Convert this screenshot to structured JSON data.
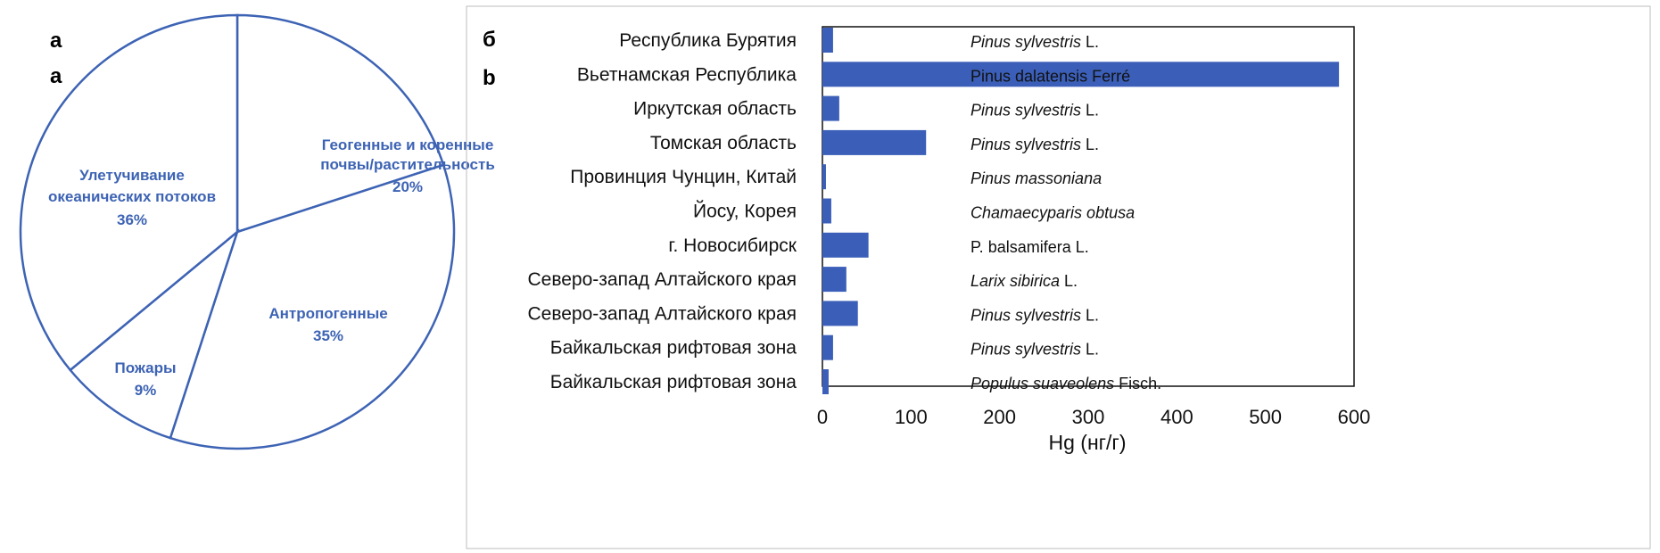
{
  "panels": {
    "pie_letters": [
      "а",
      "a"
    ],
    "bar_letters": [
      "б",
      "b"
    ]
  },
  "colors": {
    "pie_stroke": "#3d63b4",
    "pie_text": "#3d63b4",
    "bar_fill": "#3b5fb8",
    "axis": "#111111"
  },
  "chart_data": [
    {
      "type": "pie",
      "slices": [
        {
          "label": "Геогенные и коренные почвы/растительность",
          "lines": [
            "Геогенные и коренные",
            "почвы/растительность"
          ],
          "pct_label": "20%",
          "value": 20
        },
        {
          "label": "Антропогенные",
          "lines": [
            "Антропогенные"
          ],
          "pct_label": "35%",
          "value": 35
        },
        {
          "label": "Пожары",
          "lines": [
            "Пожары"
          ],
          "pct_label": "9%",
          "value": 9
        },
        {
          "label": "Улетучивание океанических потоков",
          "lines": [
            "Улетучивание",
            "океанических потоков"
          ],
          "pct_label": "36%",
          "value": 36
        }
      ],
      "start_angle_deg": 0,
      "direction": "clockwise"
    },
    {
      "type": "bar",
      "orientation": "horizontal",
      "categories": [
        "Республика Бурятия",
        "Вьетнамская Республика",
        "Иркутская область",
        "Томская область",
        "Провинция Чунцин, Китай",
        "Йосу, Корея",
        "г. Новосибирск",
        "Северо-запад Алтайского края",
        "Северо-запад Алтайского края",
        "Байкальская рифтовая зона",
        "Байкальская рифтовая зона"
      ],
      "species": [
        {
          "italic": "Pinus sylvestris",
          "rest": " L."
        },
        {
          "italic": "",
          "rest": "Pinus dalatensis Ferré"
        },
        {
          "italic": "Pinus sylvestris",
          "rest": " L."
        },
        {
          "italic": "Pinus sylvestris",
          "rest": " L."
        },
        {
          "italic": "Pinus massoniana",
          "rest": ""
        },
        {
          "italic": "Chamaecyparis obtusa",
          "rest": ""
        },
        {
          "italic": "",
          "rest": "P. balsamifera L."
        },
        {
          "italic": "Larix sibirica",
          "rest": " L."
        },
        {
          "italic": "Pinus sylvestris",
          "rest": " L."
        },
        {
          "italic": "Pinus sylvestris",
          "rest": " L."
        },
        {
          "italic": "Populus suaveolens",
          "rest": " Fisch."
        }
      ],
      "values": [
        12,
        583,
        19,
        117,
        4,
        10,
        52,
        27,
        40,
        12,
        7
      ],
      "xlabel": "Hg (нг/г)",
      "xlim": [
        0,
        600
      ],
      "xticks": [
        0,
        100,
        200,
        300,
        400,
        500,
        600
      ],
      "grid": false
    }
  ]
}
